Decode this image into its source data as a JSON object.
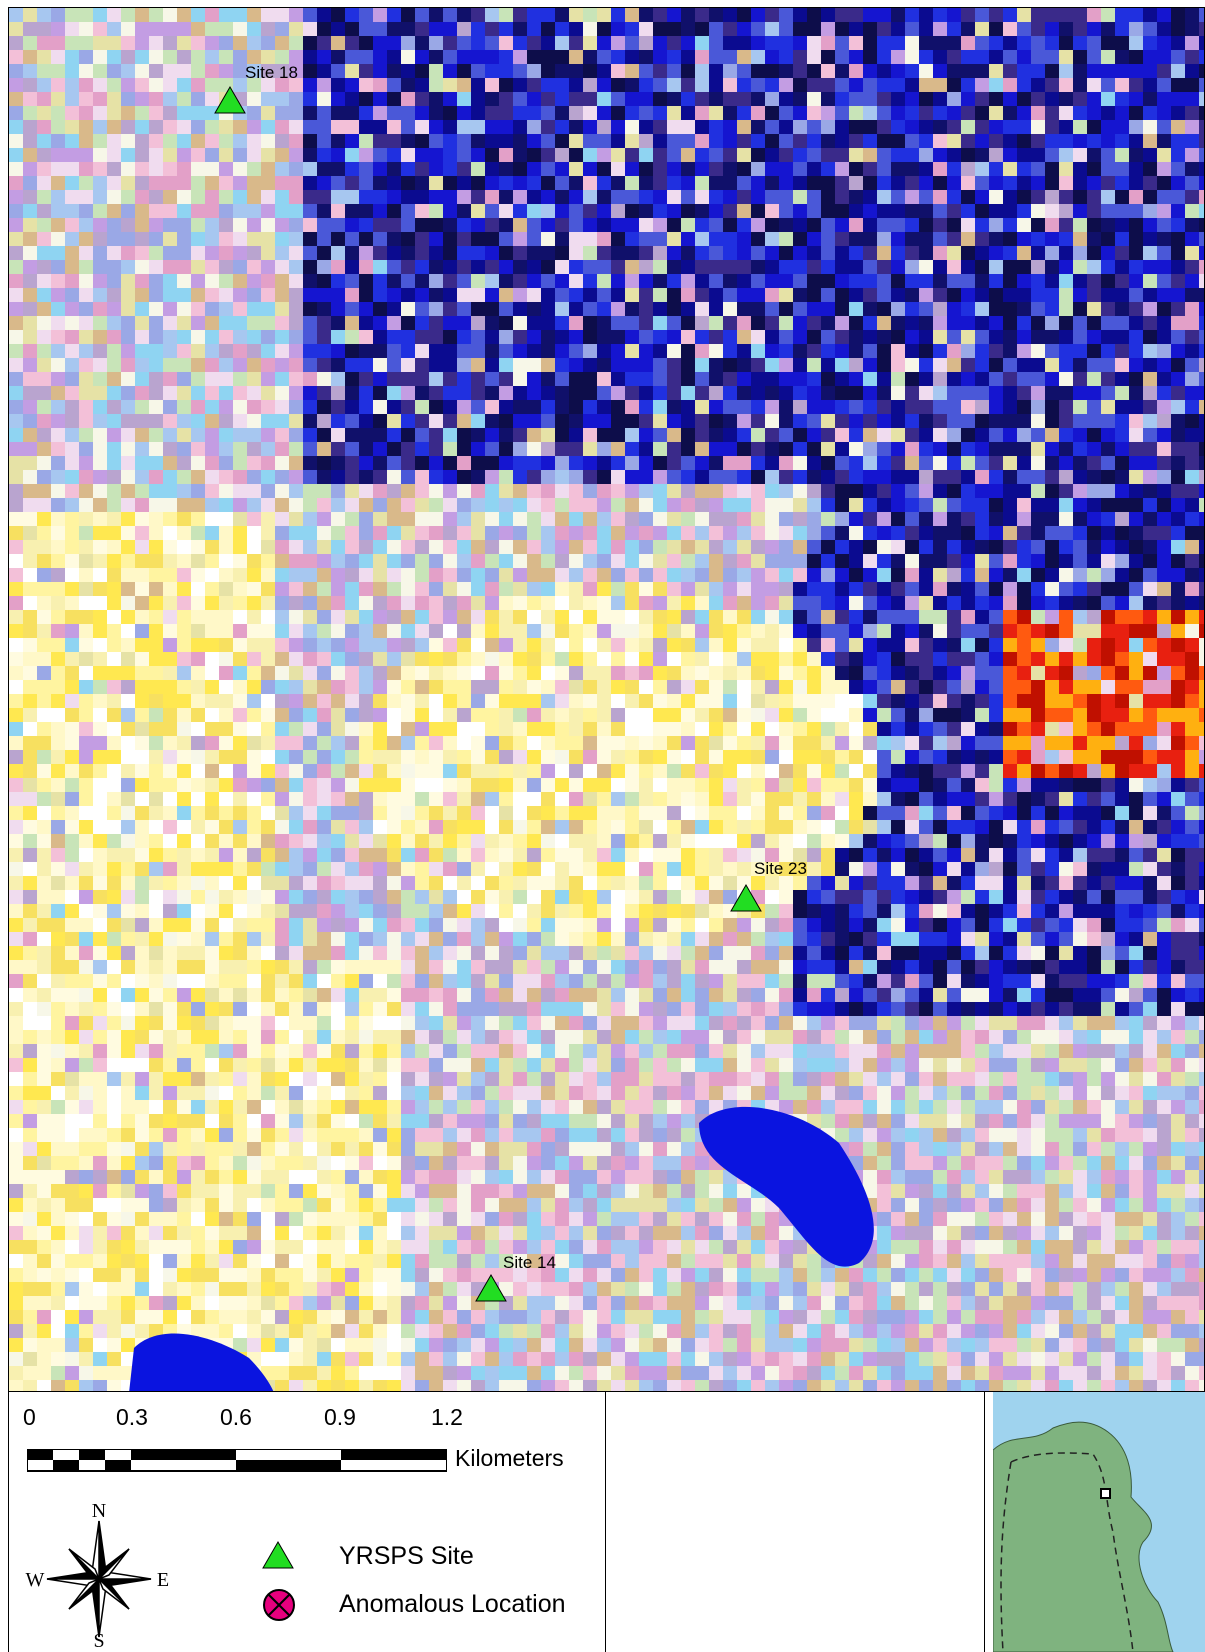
{
  "map": {
    "sites": [
      {
        "label": "Site 18"
      },
      {
        "label": "Site 23"
      },
      {
        "label": "Site 14"
      }
    ],
    "marker_color": "#22dd22"
  },
  "scale": {
    "ticks": [
      "0",
      "0.3",
      "0.6",
      "0.9",
      "1.2"
    ],
    "unit": "Kilometers"
  },
  "compass": {
    "n": "N",
    "s": "S",
    "e": "E",
    "w": "W"
  },
  "legend": {
    "items": [
      {
        "label": "YRSPS Site",
        "symbol": "green-triangle-icon",
        "color": "#22dd22"
      },
      {
        "label": "Anomalous Location",
        "symbol": "magenta-crossed-circle-icon",
        "color": "#e6007e"
      }
    ]
  },
  "inset": {
    "water_color": "#9fd3ee",
    "land_color": "#7fb37f"
  }
}
